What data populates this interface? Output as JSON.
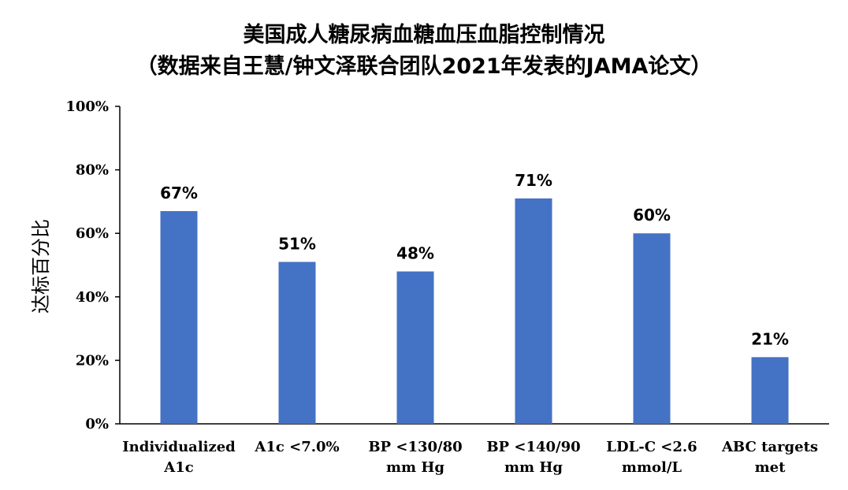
{
  "chart_data": {
    "type": "bar",
    "title": "美国成人糖尿病血糖血压血脂控制情况",
    "subtitle": "（数据来自王慧/钟文泽联合团队2021年发表的JAMA论文）",
    "ylabel": "达标百分比",
    "xlabel": "",
    "ylim": [
      0,
      100
    ],
    "yticks": [
      "0%",
      "20%",
      "40%",
      "60%",
      "80%",
      "100%"
    ],
    "categories": [
      [
        "Individualized",
        "A1c"
      ],
      [
        "A1c <7.0%"
      ],
      [
        "BP <130/80",
        "mm Hg"
      ],
      [
        "BP <140/90",
        "mm Hg"
      ],
      [
        "LDL-C <2.6",
        "mmol/L"
      ],
      [
        "ABC targets",
        "met"
      ]
    ],
    "values": [
      67,
      51,
      48,
      71,
      60,
      21
    ],
    "data_labels": [
      "67%",
      "51%",
      "48%",
      "71%",
      "60%",
      "21%"
    ],
    "bar_color": "#4472C4",
    "grid": false,
    "legend": "none"
  }
}
